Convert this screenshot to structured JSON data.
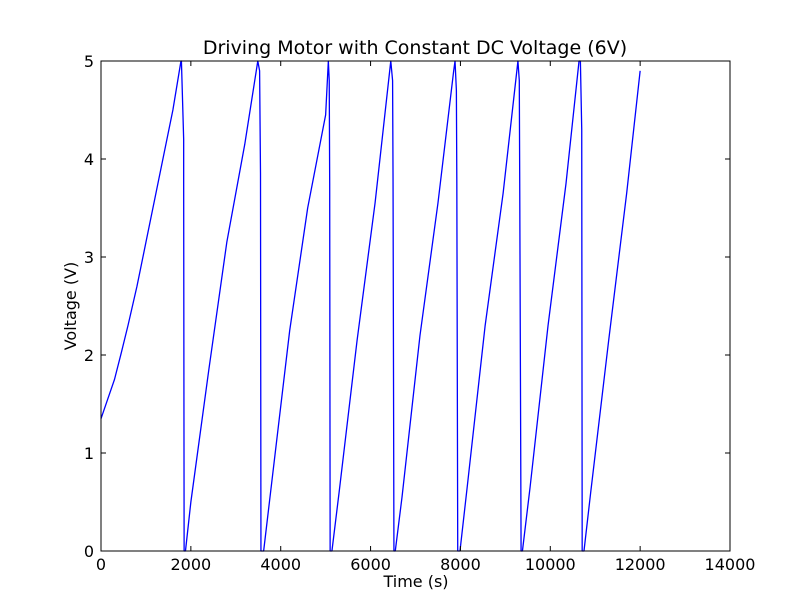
{
  "chart_data": {
    "type": "line",
    "title": "Driving Motor with Constant DC Voltage (6V)",
    "xlabel": "Time (s)",
    "ylabel": "Voltage (V)",
    "xlim": [
      0,
      14000
    ],
    "ylim": [
      0,
      5
    ],
    "xticks": [
      0,
      2000,
      4000,
      6000,
      8000,
      10000,
      12000,
      14000
    ],
    "yticks": [
      0,
      1,
      2,
      3,
      4,
      5
    ],
    "grid": false,
    "legend": false,
    "series": [
      {
        "color": "#0000ff",
        "points": [
          [
            0,
            1.35
          ],
          [
            150,
            1.55
          ],
          [
            300,
            1.75
          ],
          [
            450,
            2.02
          ],
          [
            600,
            2.3
          ],
          [
            800,
            2.7
          ],
          [
            1000,
            3.15
          ],
          [
            1200,
            3.6
          ],
          [
            1400,
            4.05
          ],
          [
            1600,
            4.5
          ],
          [
            1780,
            5.0
          ],
          [
            1790,
            5.0
          ],
          [
            1840,
            4.2
          ],
          [
            1840,
            3.75
          ],
          [
            1850,
            0.0
          ],
          [
            1880,
            0.0
          ],
          [
            2000,
            0.5
          ],
          [
            2400,
            1.85
          ],
          [
            2800,
            3.15
          ],
          [
            3200,
            4.15
          ],
          [
            3490,
            5.0
          ],
          [
            3530,
            4.9
          ],
          [
            3550,
            3.85
          ],
          [
            3560,
            0.0
          ],
          [
            3620,
            0.0
          ],
          [
            3800,
            0.7
          ],
          [
            4200,
            2.25
          ],
          [
            4600,
            3.5
          ],
          [
            5000,
            4.45
          ],
          [
            5060,
            5.0
          ],
          [
            5080,
            4.8
          ],
          [
            5090,
            3.75
          ],
          [
            5100,
            0.0
          ],
          [
            5140,
            0.0
          ],
          [
            5300,
            0.6
          ],
          [
            5700,
            2.15
          ],
          [
            6100,
            3.55
          ],
          [
            6450,
            5.0
          ],
          [
            6490,
            4.8
          ],
          [
            6500,
            3.8
          ],
          [
            6520,
            0.0
          ],
          [
            6550,
            0.0
          ],
          [
            6700,
            0.55
          ],
          [
            7100,
            2.2
          ],
          [
            7500,
            3.55
          ],
          [
            7850,
            4.9
          ],
          [
            7880,
            5.0
          ],
          [
            7910,
            4.7
          ],
          [
            7920,
            3.75
          ],
          [
            7940,
            0.0
          ],
          [
            7990,
            0.0
          ],
          [
            8150,
            0.65
          ],
          [
            8550,
            2.3
          ],
          [
            8950,
            3.65
          ],
          [
            9280,
            5.0
          ],
          [
            9310,
            4.8
          ],
          [
            9320,
            3.75
          ],
          [
            9350,
            0.0
          ],
          [
            9380,
            0.0
          ],
          [
            9550,
            0.65
          ],
          [
            9950,
            2.3
          ],
          [
            10350,
            3.75
          ],
          [
            10640,
            5.0
          ],
          [
            10670,
            5.0
          ],
          [
            10700,
            4.3
          ],
          [
            10710,
            0.0
          ],
          [
            10750,
            0.0
          ],
          [
            10900,
            0.6
          ],
          [
            11300,
            2.15
          ],
          [
            11700,
            3.65
          ],
          [
            12000,
            4.9
          ]
        ]
      }
    ]
  }
}
